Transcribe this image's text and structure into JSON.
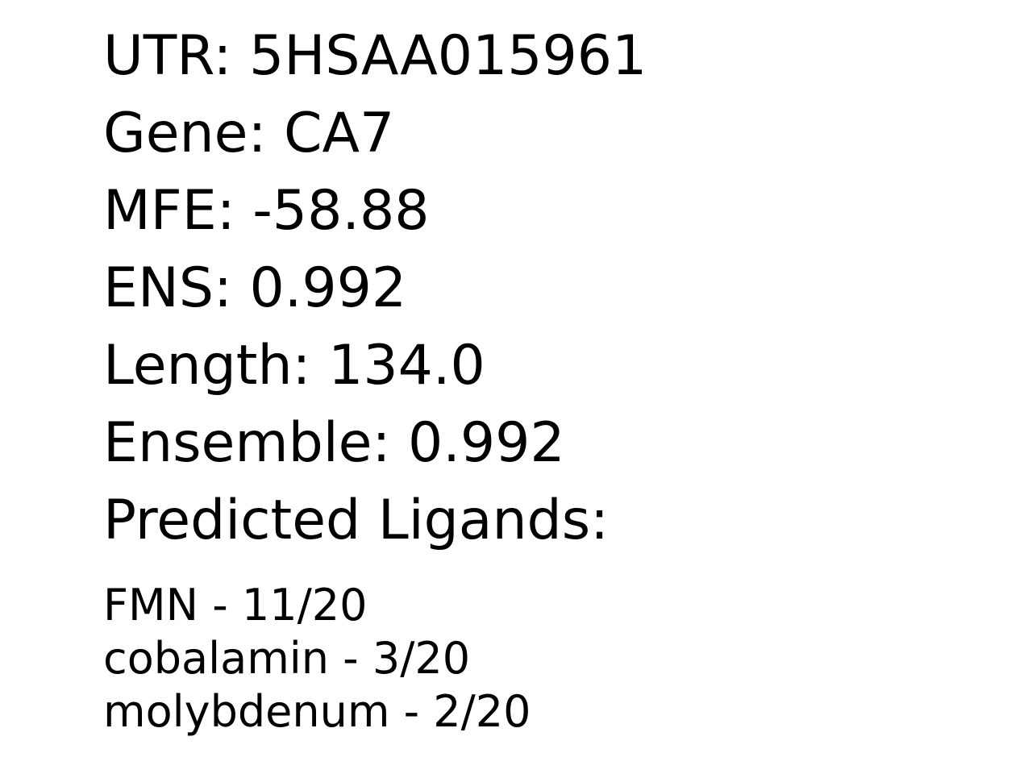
{
  "fields": {
    "utr": "UTR: 5HSAA015961",
    "gene": "Gene: CA7",
    "mfe": "MFE: -58.88",
    "ens": "ENS: 0.992",
    "length": "Length: 134.0",
    "ensemble": "Ensemble: 0.992",
    "ligands_heading": "Predicted Ligands:"
  },
  "ligands": [
    "FMN - 11/20",
    "cobalamin - 3/20",
    "molybdenum - 2/20"
  ]
}
